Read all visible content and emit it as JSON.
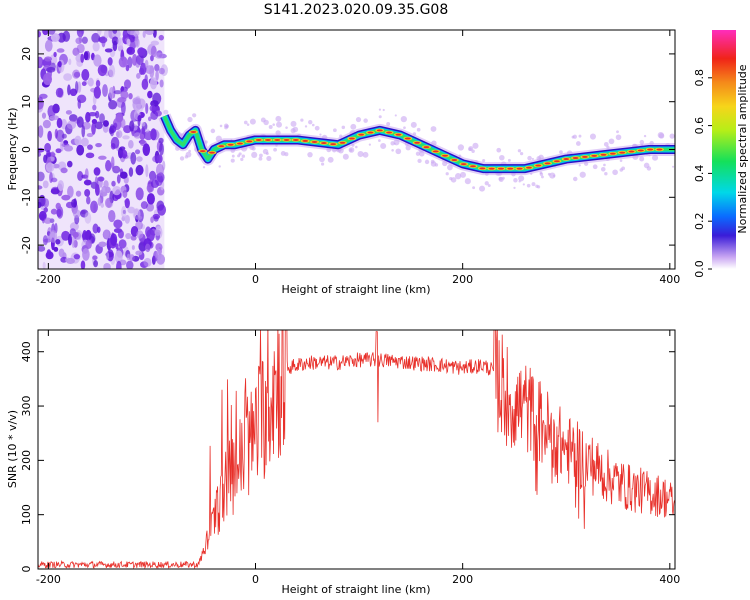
{
  "title": "S141.2023.020.09.35.G08",
  "colors": {
    "snr_line": "#e8302a",
    "spectrum_noise": "#7a2ce0",
    "spectrum_ridge_core": "#e8302a",
    "frame": "#000000"
  },
  "chart_data": [
    {
      "type": "heatmap",
      "name": "spectrogram",
      "xlabel": "Height of straight line (km)",
      "ylabel": "Frequency (Hz)",
      "xlim": [
        -210,
        405
      ],
      "ylim": [
        -25,
        25
      ],
      "xticks": [
        -200,
        0,
        200,
        400
      ],
      "yticks": [
        -20,
        -10,
        0,
        10,
        20
      ],
      "ridge": {
        "x": [
          -88,
          -82,
          -76,
          -70,
          -64,
          -58,
          -52,
          -46,
          -40,
          -30,
          -20,
          0,
          40,
          80,
          100,
          120,
          140,
          160,
          180,
          200,
          220,
          260,
          300,
          340,
          380,
          405
        ],
        "y": [
          7,
          4,
          2,
          1,
          3,
          4,
          0,
          -2,
          0,
          1,
          1,
          2,
          2,
          1,
          3,
          4,
          3,
          1,
          -1,
          -3,
          -4,
          -4,
          -2,
          -1,
          0,
          0
        ]
      },
      "noise_region": [
        -210,
        -88
      ],
      "colorbar": {
        "label": "Normalized spectral amplitude",
        "range": [
          0,
          1
        ],
        "ticks": [
          0.0,
          0.2,
          0.4,
          0.6,
          0.8
        ],
        "tick_labels": [
          "0.0",
          "0.2",
          "0.4",
          "0.6",
          "0.8"
        ]
      }
    },
    {
      "type": "line",
      "name": "snr",
      "xlabel": "Height of straight line (km)",
      "ylabel": "SNR (10 * v/v)",
      "xlim": [
        -210,
        405
      ],
      "ylim": [
        0,
        440
      ],
      "xticks": [
        -200,
        0,
        200,
        400
      ],
      "yticks": [
        0,
        100,
        200,
        300,
        400
      ],
      "envelope": {
        "x": [
          -210,
          -55,
          -45,
          -35,
          -25,
          -10,
          0,
          10,
          20,
          30,
          50,
          80,
          100,
          120,
          150,
          180,
          200,
          220,
          230,
          240,
          250,
          260,
          280,
          300,
          320,
          340,
          360,
          380,
          400,
          405
        ],
        "y": [
          8,
          8,
          60,
          120,
          170,
          210,
          250,
          300,
          350,
          370,
          380,
          380,
          385,
          385,
          380,
          375,
          370,
          375,
          365,
          330,
          300,
          300,
          260,
          220,
          200,
          170,
          150,
          140,
          130,
          110
        ]
      },
      "spike": {
        "x": 117,
        "y": 437
      },
      "dip": {
        "x": 118,
        "y": 270
      }
    }
  ]
}
